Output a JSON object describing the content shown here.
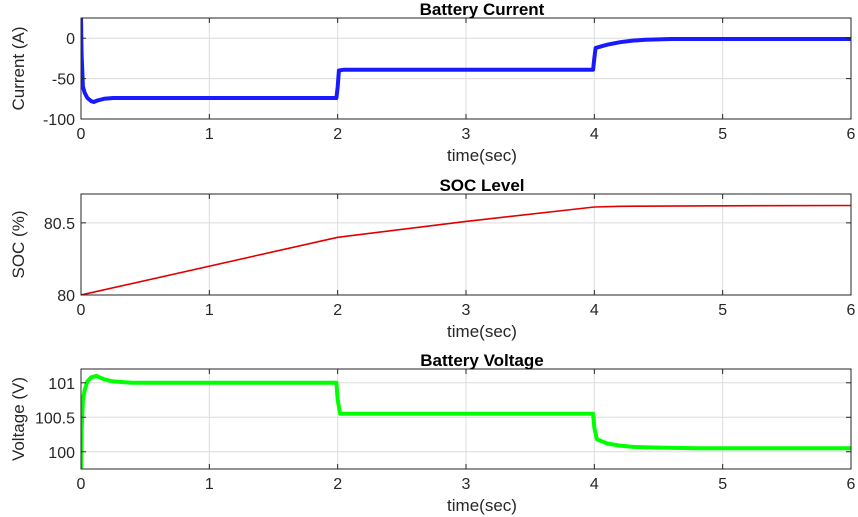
{
  "chart_data": [
    {
      "type": "line",
      "title": "Battery Current",
      "xlabel": "time(sec)",
      "ylabel": "Current (A)",
      "xlim": [
        0,
        6
      ],
      "ylim": [
        -100,
        25
      ],
      "xticks": [
        0,
        1,
        2,
        3,
        4,
        5,
        6
      ],
      "yticks": [
        -100,
        -50,
        0
      ],
      "xtick_labels": [
        "0",
        "1",
        "2",
        "3",
        "4",
        "5",
        "6"
      ],
      "ytick_labels": [
        "-100",
        "-50",
        "0"
      ],
      "grid": true,
      "color": "#1a1aff",
      "line_width": 4,
      "x": [
        0,
        0.005,
        0.015,
        0.03,
        0.05,
        0.08,
        0.1,
        0.13,
        0.18,
        0.25,
        0.4,
        1.0,
        1.99,
        2.0,
        2.01,
        2.05,
        2.2,
        3.0,
        3.99,
        4.0,
        4.01,
        4.1,
        4.2,
        4.3,
        4.4,
        4.6,
        5.0,
        6.0
      ],
      "y": [
        25,
        -20,
        -60,
        -68,
        -74,
        -78,
        -79,
        -77,
        -75,
        -74,
        -74,
        -74,
        -74,
        -60,
        -40,
        -39,
        -39,
        -39,
        -39,
        -25,
        -12,
        -8,
        -5,
        -3,
        -2,
        -1,
        -1,
        -1
      ]
    },
    {
      "type": "line",
      "title": "SOC Level",
      "xlabel": "time(sec)",
      "ylabel": "SOC (%)",
      "xlim": [
        0,
        6
      ],
      "ylim": [
        80,
        80.7
      ],
      "xticks": [
        0,
        1,
        2,
        3,
        4,
        5,
        6
      ],
      "yticks": [
        80,
        80.5
      ],
      "xtick_labels": [
        "0",
        "1",
        "2",
        "3",
        "4",
        "5",
        "6"
      ],
      "ytick_labels": [
        "80",
        "80.5"
      ],
      "grid": true,
      "color": "#e00000",
      "line_width": 1.6,
      "x": [
        0,
        2,
        3,
        4,
        4.2,
        5,
        6
      ],
      "y": [
        80.0,
        80.4,
        80.51,
        80.61,
        80.615,
        80.618,
        80.62
      ]
    },
    {
      "type": "line",
      "title": "Battery Voltage",
      "xlabel": "time(sec)",
      "ylabel": "Voltage (V)",
      "xlim": [
        0,
        6
      ],
      "ylim": [
        99.75,
        101.2
      ],
      "xticks": [
        0,
        1,
        2,
        3,
        4,
        5,
        6
      ],
      "yticks": [
        100,
        100.5,
        101
      ],
      "xtick_labels": [
        "0",
        "1",
        "2",
        "3",
        "4",
        "5",
        "6"
      ],
      "ytick_labels": [
        "100",
        "100.5",
        "101"
      ],
      "grid": true,
      "color": "#00ff00",
      "line_width": 4,
      "x": [
        0,
        0.005,
        0.015,
        0.03,
        0.05,
        0.08,
        0.12,
        0.18,
        0.25,
        0.4,
        1.0,
        1.99,
        2.0,
        2.02,
        2.1,
        3.0,
        3.99,
        4.0,
        4.02,
        4.1,
        4.2,
        4.3,
        4.5,
        4.8,
        6.0
      ],
      "y": [
        99.76,
        100.3,
        100.75,
        100.9,
        101.02,
        101.08,
        101.1,
        101.05,
        101.02,
        101.0,
        101.0,
        101.0,
        100.75,
        100.55,
        100.55,
        100.55,
        100.55,
        100.35,
        100.18,
        100.12,
        100.09,
        100.07,
        100.06,
        100.05,
        100.05
      ]
    }
  ]
}
